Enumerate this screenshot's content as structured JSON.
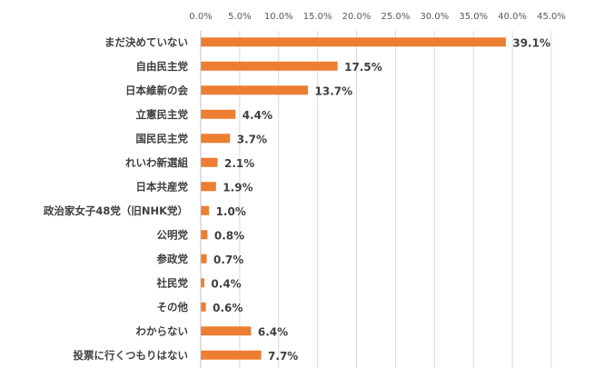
{
  "chart_data": {
    "type": "bar",
    "orientation": "horizontal",
    "title": "",
    "xlabel": "",
    "ylabel": "",
    "xlim": [
      0,
      45
    ],
    "x_ticks": [
      "0.0%",
      "5.0%",
      "10.0%",
      "15.0%",
      "20.0%",
      "25.0%",
      "30.0%",
      "35.0%",
      "40.0%",
      "45.0%"
    ],
    "grid": true,
    "legend": "none",
    "bar_color": "#ED7D31",
    "categories": [
      "まだ決めていない",
      "自由民主党",
      "日本維新の会",
      "立憲民主党",
      "国民民主党",
      "れいわ新選組",
      "日本共産党",
      "政治家女子48党（旧NHK党）",
      "公明党",
      "参政党",
      "社民党",
      "その他",
      "わからない",
      "投票に行くつもりはない"
    ],
    "values": [
      39.1,
      17.5,
      13.7,
      4.4,
      3.7,
      2.1,
      1.9,
      1.0,
      0.8,
      0.7,
      0.4,
      0.6,
      6.4,
      7.7
    ],
    "data_labels": [
      "39.1%",
      "17.5%",
      "13.7%",
      "4.4%",
      "3.7%",
      "2.1%",
      "1.9%",
      "1.0%",
      "0.8%",
      "0.7%",
      "0.4%",
      "0.6%",
      "6.4%",
      "7.7%"
    ]
  }
}
